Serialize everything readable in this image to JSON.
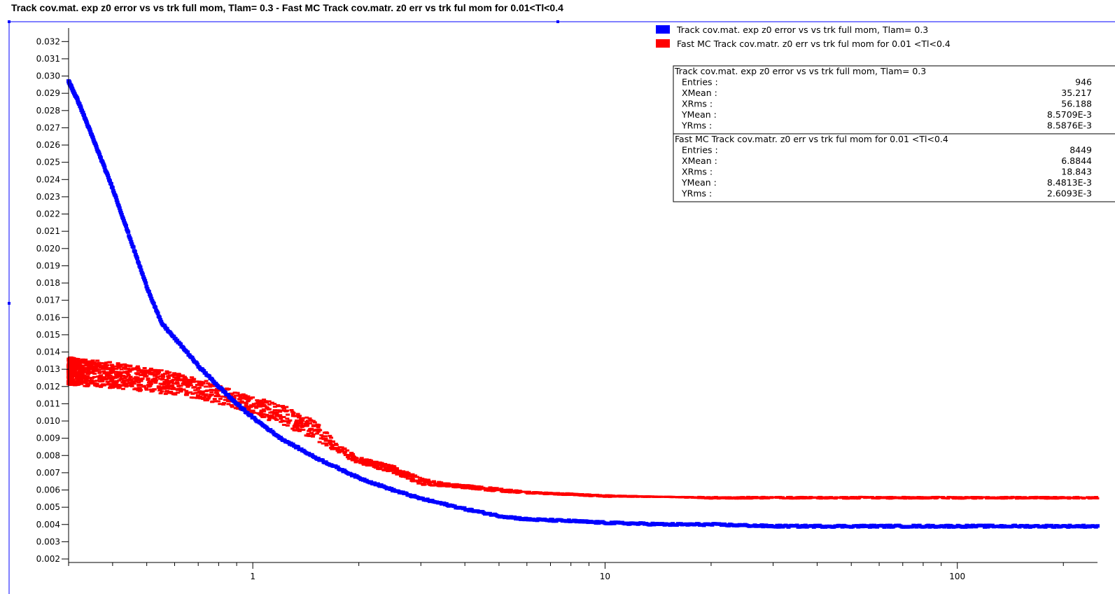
{
  "title": "Track cov.mat. exp z0 error vs vs trk full mom, Tlam= 0.3 - Fast MC Track cov.matr. z0 err vs trk ful mom for 0.01<Tl<0.4",
  "colors": {
    "series1": "#0000ff",
    "series2": "#ff0000",
    "frame": "#0000ff"
  },
  "chart_data": {
    "type": "scatter",
    "title": "Track cov.mat. exp z0 error vs vs trk full mom, Tlam= 0.3 - Fast MC Track cov.matr. z0 err vs trk ful mom for 0.01<Tl<0.4",
    "xlabel": "",
    "ylabel": "",
    "xscale": "log",
    "xlim": [
      0.3,
      250
    ],
    "ylim": [
      0.002,
      0.0325
    ],
    "xticks": [
      "1",
      "10",
      "100"
    ],
    "yticks": [
      "0.002",
      "0.003",
      "0.004",
      "0.005",
      "0.006",
      "0.007",
      "0.008",
      "0.009",
      "0.010",
      "0.011",
      "0.012",
      "0.013",
      "0.014",
      "0.015",
      "0.016",
      "0.017",
      "0.018",
      "0.019",
      "0.020",
      "0.021",
      "0.022",
      "0.023",
      "0.024",
      "0.025",
      "0.026",
      "0.027",
      "0.028",
      "0.029",
      "0.030",
      "0.031",
      "0.032"
    ],
    "legend_position": "top-right",
    "series": [
      {
        "name": "Track cov.mat. exp z0 error vs vs trk full mom, Tlam= 0.3",
        "color": "#0000ff",
        "x": [
          0.3,
          0.32,
          0.35,
          0.4,
          0.45,
          0.5,
          0.55,
          0.6,
          0.65,
          0.7,
          0.8,
          0.9,
          1.0,
          1.2,
          1.5,
          2.0,
          2.5,
          3.0,
          4.0,
          5.0,
          6.0,
          8.0,
          10,
          15,
          20,
          30,
          50,
          100,
          150,
          250
        ],
        "y": [
          0.0297,
          0.0285,
          0.0265,
          0.0235,
          0.0205,
          0.0178,
          0.0157,
          0.0148,
          0.014,
          0.0132,
          0.012,
          0.011,
          0.0102,
          0.009,
          0.0079,
          0.0067,
          0.006,
          0.0055,
          0.0049,
          0.0045,
          0.0043,
          0.0042,
          0.0041,
          0.004,
          0.004,
          0.0039,
          0.0039,
          0.0039,
          0.0039,
          0.0039
        ]
      },
      {
        "name": "Fast MC Track cov.matr. z0 err vs trk ful mom for 0.01<Tl<0.4",
        "color": "#ff0000",
        "x": [
          0.3,
          0.4,
          0.5,
          0.6,
          0.7,
          0.8,
          0.9,
          1.0,
          1.2,
          1.5,
          1.8,
          2.0,
          2.5,
          3.0,
          3.5,
          4.0,
          5.0,
          6.0,
          8.0,
          10,
          15,
          20,
          50,
          100,
          250
        ],
        "y_low": [
          0.0121,
          0.0119,
          0.0117,
          0.0115,
          0.0113,
          0.011,
          0.0107,
          0.0104,
          0.0098,
          0.0089,
          0.008,
          0.0075,
          0.007,
          0.0063,
          0.0062,
          0.0061,
          0.0059,
          0.0058,
          0.0057,
          0.0056,
          0.0056,
          0.0055,
          0.0055,
          0.0055,
          0.0055
        ],
        "y_high": [
          0.0137,
          0.0134,
          0.0131,
          0.0128,
          0.0125,
          0.0121,
          0.0117,
          0.0114,
          0.011,
          0.01,
          0.0085,
          0.0079,
          0.0074,
          0.0067,
          0.0064,
          0.0063,
          0.0061,
          0.0059,
          0.0058,
          0.0057,
          0.0056,
          0.0056,
          0.0056,
          0.0056,
          0.0056
        ]
      }
    ],
    "legend": [
      {
        "label": "Track cov.mat. exp z0 error vs vs trk full mom, Tlam= 0.3",
        "color": "#0000ff"
      },
      {
        "label": "Fast MC Track cov.matr. z0 err vs trk ful mom for 0.01 <Tl<0.4",
        "color": "#ff0000"
      }
    ],
    "stats": [
      {
        "header": "Track cov.mat. exp z0 error vs vs trk full mom, Tlam= 0.3",
        "rows": [
          {
            "label": "Entries :",
            "value": "946"
          },
          {
            "label": "XMean :",
            "value": "35.217"
          },
          {
            "label": "XRms :",
            "value": "56.188"
          },
          {
            "label": "YMean :",
            "value": "8.5709E-3"
          },
          {
            "label": "YRms :",
            "value": "8.5876E-3"
          }
        ]
      },
      {
        "header": "Fast MC Track cov.matr. z0 err vs trk ful mom for 0.01 <Tl<0.4",
        "rows": [
          {
            "label": "Entries :",
            "value": "8449"
          },
          {
            "label": "XMean :",
            "value": "6.8844"
          },
          {
            "label": "XRms :",
            "value": "18.843"
          },
          {
            "label": "YMean :",
            "value": "8.4813E-3"
          },
          {
            "label": "YRms :",
            "value": "2.6093E-3"
          }
        ]
      }
    ]
  }
}
